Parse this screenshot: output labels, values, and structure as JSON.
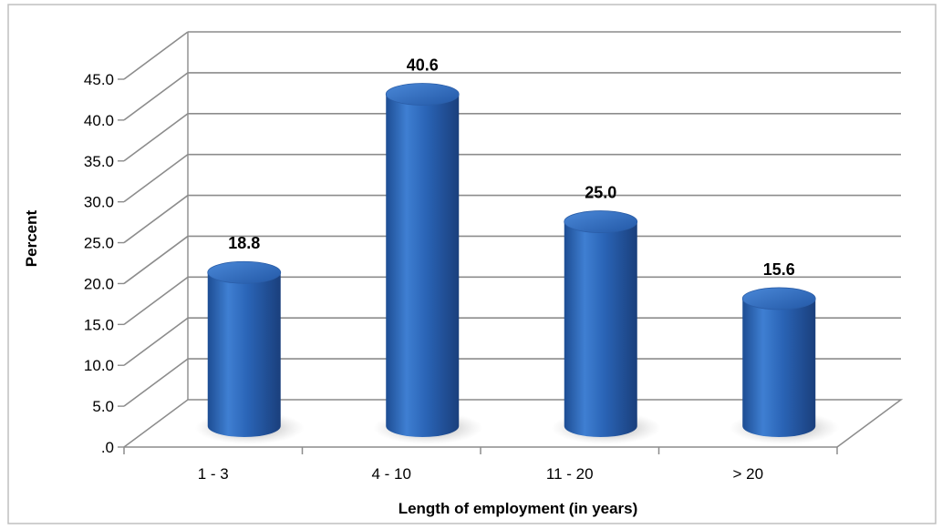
{
  "chart_data": {
    "type": "bar",
    "style": "3d-cylinder",
    "categories": [
      "1 - 3",
      "4 - 10",
      "11 - 20",
      "> 20"
    ],
    "values": [
      18.8,
      40.6,
      25.0,
      15.6
    ],
    "data_labels": [
      "18.8",
      "40.6",
      "25.0",
      "15.6"
    ],
    "xlabel": "Length of employment (in years)",
    "ylabel": "Percent",
    "ylim": [
      0,
      45
    ],
    "yticks": [
      ".0",
      "5.0",
      "10.0",
      "15.0",
      "20.0",
      "25.0",
      "30.0",
      "35.0",
      "40.0",
      "45.0"
    ],
    "grid": true,
    "legend": "none",
    "bar_color": "#2b66b8"
  }
}
